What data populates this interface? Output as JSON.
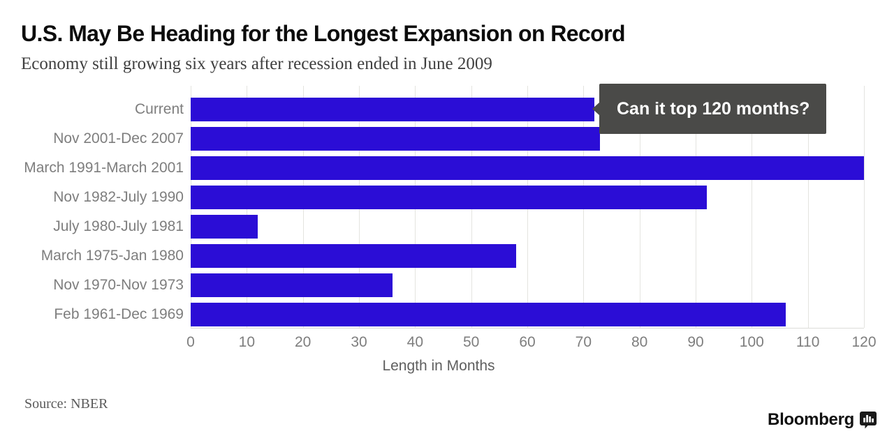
{
  "header": {
    "title": "U.S. May Be Heading for the Longest Expansion on Record",
    "subtitle": "Economy still growing six years after recession ended in June 2009"
  },
  "chart_data": {
    "type": "bar",
    "orientation": "horizontal",
    "categories": [
      "Current",
      "Nov 2001-Dec 2007",
      "March 1991-March 2001",
      "Nov 1982-July 1990",
      "July 1980-July 1981",
      "March 1975-Jan 1980",
      "Nov 1970-Nov 1973",
      "Feb 1961-Dec 1969"
    ],
    "values": [
      72,
      73,
      120,
      92,
      12,
      58,
      36,
      106
    ],
    "xlabel": "Length in Months",
    "xlim": [
      0,
      120
    ],
    "xticks": [
      0,
      10,
      20,
      30,
      40,
      50,
      60,
      70,
      80,
      90,
      100,
      110,
      120
    ],
    "grid": true,
    "legend": "none",
    "bar_color": "#2b0dd6",
    "annotation": {
      "text": "Can it top 120 months?",
      "target_category": "Current",
      "target_value": 72,
      "bg_color": "#4a4a48",
      "text_color": "#ffffff"
    }
  },
  "footer": {
    "source": "Source: NBER",
    "brand": "Bloomberg"
  },
  "icons": {
    "brand_icon": "bar-chart-speech-bubble-icon"
  }
}
